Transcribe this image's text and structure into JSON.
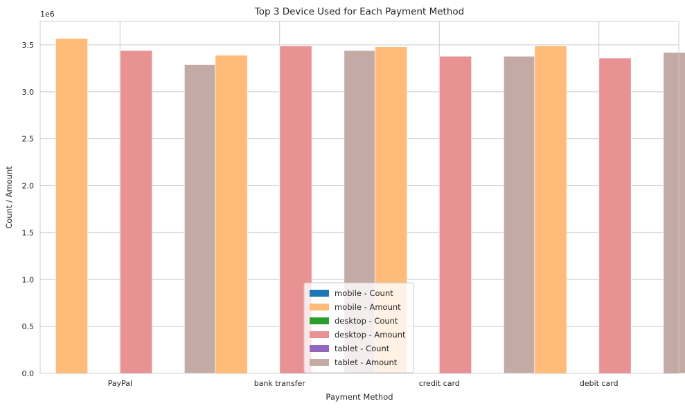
{
  "chart_data": {
    "type": "bar",
    "title": "Top 3 Device Used for Each Payment Method",
    "xlabel": "Payment Method",
    "ylabel": "Count / Amount",
    "y_offset_text": "1e6",
    "ylim": [
      0,
      3750000
    ],
    "yticks": [
      0,
      500000,
      1000000,
      1500000,
      2000000,
      2500000,
      3000000,
      3500000
    ],
    "ytick_labels": [
      "0.0",
      "0.5",
      "1.0",
      "1.5",
      "2.0",
      "2.5",
      "3.0",
      "3.5"
    ],
    "grid": true,
    "legend_position": "lower-center",
    "categories": [
      "PayPal",
      "bank transfer",
      "credit card",
      "debit card"
    ],
    "series": [
      {
        "name": "mobile - Count",
        "color": "#1f77b4",
        "values": [
          3500,
          3400,
          3480,
          3490
        ]
      },
      {
        "name": "mobile - Amount",
        "color": "#ffbb78",
        "values": [
          3570000,
          3390000,
          3480000,
          3490000
        ]
      },
      {
        "name": "desktop - Count",
        "color": "#2ca02c",
        "values": [
          3440,
          3490,
          3380,
          3360
        ]
      },
      {
        "name": "desktop - Amount",
        "color": "#e99294",
        "values": [
          3440000,
          3490000,
          3380000,
          3360000
        ]
      },
      {
        "name": "tablet - Count",
        "color": "#9467bd",
        "values": [
          3290,
          3440,
          3380,
          3420
        ]
      },
      {
        "name": "tablet - Amount",
        "color": "#c4aaa4",
        "values": [
          3290000,
          3440000,
          3380000,
          3420000
        ]
      }
    ]
  }
}
